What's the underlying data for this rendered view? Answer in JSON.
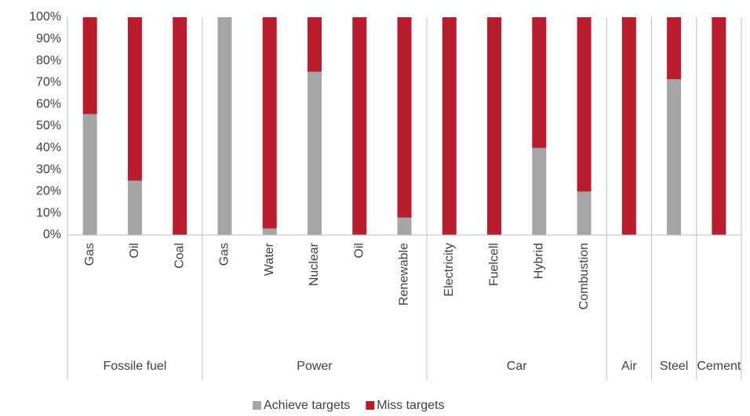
{
  "chart_data": {
    "type": "stacked_bar",
    "groups": [
      {
        "name": "Fossile fuel",
        "categories": [
          "Gas",
          "Oil",
          "Coal"
        ]
      },
      {
        "name": "Power",
        "categories": [
          "Gas",
          "Water",
          "Nuclear",
          "Oil",
          "Renewable"
        ]
      },
      {
        "name": "Car",
        "categories": [
          "Electricity",
          "Fuelcell",
          "Hybrid",
          "Combustion"
        ]
      },
      {
        "name": "Air",
        "categories": [
          null
        ]
      },
      {
        "name": "Steel",
        "categories": [
          null
        ]
      },
      {
        "name": "Cement",
        "categories": [
          null
        ]
      }
    ],
    "series": [
      {
        "name": "Achieve targets",
        "color": "#a5a5a5",
        "values": [
          55.5,
          25,
          0,
          100,
          3,
          75,
          0,
          8,
          0,
          0,
          40,
          20,
          0,
          71.5,
          0
        ]
      },
      {
        "name": "Miss targets",
        "color": "#b91c2c",
        "values": [
          44.5,
          75,
          100,
          0,
          97,
          25,
          100,
          92,
          100,
          100,
          60,
          80,
          100,
          28.5,
          100
        ]
      }
    ],
    "ylim": [
      0,
      100
    ],
    "yticks": [
      {
        "value": 0,
        "label": "0%"
      },
      {
        "value": 10,
        "label": "10%"
      },
      {
        "value": 20,
        "label": "20%"
      },
      {
        "value": 30,
        "label": "30%"
      },
      {
        "value": 40,
        "label": "40%"
      },
      {
        "value": 50,
        "label": "50%"
      },
      {
        "value": 60,
        "label": "60%"
      },
      {
        "value": 70,
        "label": "70%"
      },
      {
        "value": 80,
        "label": "80%"
      },
      {
        "value": 90,
        "label": "90%"
      },
      {
        "value": 100,
        "label": "100%"
      }
    ],
    "legend": "bottom"
  }
}
